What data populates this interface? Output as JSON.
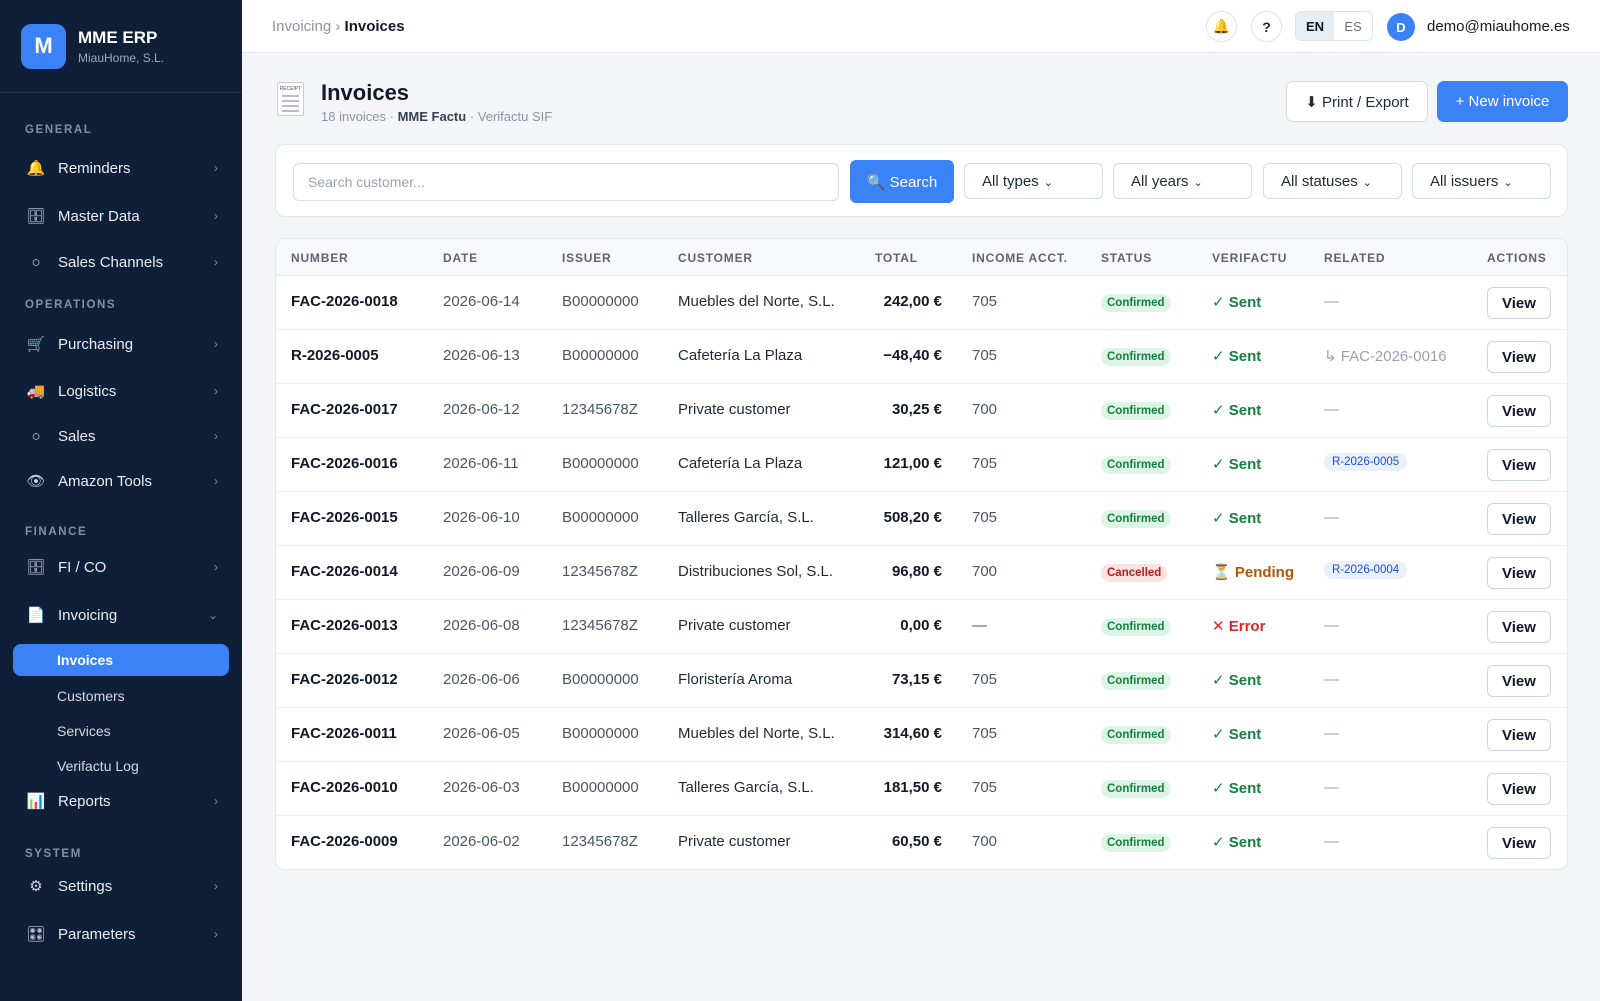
{
  "brand": {
    "logo_letter": "M",
    "name": "MME ERP",
    "company": "MiauHome, S.L."
  },
  "sidebar": {
    "sections": [
      {
        "label": "GENERAL"
      },
      {
        "label": "OPERATIONS"
      },
      {
        "label": "FINANCE"
      },
      {
        "label": "SYSTEM"
      }
    ],
    "items": [
      {
        "label": "Reminders",
        "icon": "🔔",
        "icon_name": "bell-icon"
      },
      {
        "label": "Master Data",
        "icon": "🗄",
        "icon_name": "cabinet-icon"
      },
      {
        "label": "Sales Channels",
        "icon": "○",
        "icon_name": "circle-icon"
      },
      {
        "label": "Purchasing",
        "icon": "🛒",
        "icon_name": "cart-icon"
      },
      {
        "label": "Logistics",
        "icon": "🚚",
        "icon_name": "truck-icon"
      },
      {
        "label": "Sales",
        "icon": "○",
        "icon_name": "circle-icon"
      },
      {
        "label": "Amazon Tools",
        "icon": "👁",
        "icon_name": "eye-icon"
      },
      {
        "label": "FI / CO",
        "icon": "🗄",
        "icon_name": "cabinet-icon"
      },
      {
        "label": "Invoicing",
        "icon": "📄",
        "icon_name": "document-icon"
      },
      {
        "label": "Reports",
        "icon": "📊",
        "icon_name": "chart-icon"
      },
      {
        "label": "Settings",
        "icon": "⚙",
        "icon_name": "gear-icon"
      },
      {
        "label": "Parameters",
        "icon": "🎛",
        "icon_name": "control-knobs-icon"
      }
    ],
    "chevron": "›",
    "open_chevron": "⌄",
    "subitems": [
      {
        "label": "Invoices",
        "active": true
      },
      {
        "label": "Customers",
        "active": false
      },
      {
        "label": "Services",
        "active": false
      },
      {
        "label": "Verifactu Log",
        "active": false
      }
    ]
  },
  "topbar": {
    "breadcrumb_parent": "Invoicing",
    "breadcrumb_sep": "›",
    "breadcrumb_current": "Invoices",
    "bell_icon": "🔔",
    "help_label": "?",
    "lang_en": "EN",
    "lang_es": "ES",
    "avatar_letter": "D",
    "user_email": "demo@miauhome.es"
  },
  "page": {
    "title": "Invoices",
    "count_text": "18 invoices · ",
    "software": "MME Factu",
    "sif_text": " · Verifactu SIF",
    "export_label": "⬇ Print / Export",
    "new_label": "+ New invoice",
    "receipt_icon_text": "RECEIPT"
  },
  "filters": {
    "search_placeholder": "Search customer...",
    "search_button": "🔍 Search",
    "types": "All types",
    "years": "All years",
    "statuses": "All statuses",
    "issuers": "All issuers",
    "caret": "⌄"
  },
  "table": {
    "columns": [
      "NUMBER",
      "DATE",
      "ISSUER",
      "CUSTOMER",
      "TOTAL",
      "INCOME ACCT.",
      "STATUS",
      "VERIFACTU",
      "RELATED",
      "ACTIONS"
    ],
    "rows": [
      {
        "number": "FAC-2026-0018",
        "date": "2026-06-14",
        "issuer": "B00000000",
        "customer": "Muebles del Norte, S.L.",
        "total": "242,00 €",
        "acct": "705",
        "status": "Confirmed",
        "verifactu": "✓ Sent",
        "related": "—",
        "action": "View"
      },
      {
        "number": "R-2026-0005",
        "date": "2026-06-13",
        "issuer": "B00000000",
        "customer": "Cafetería La Plaza",
        "total": "−48,40 €",
        "acct": "705",
        "status": "Confirmed",
        "verifactu": "✓ Sent",
        "related": "↳ FAC-2026-0016",
        "action": "View"
      },
      {
        "number": "FAC-2026-0017",
        "date": "2026-06-12",
        "issuer": "12345678Z",
        "customer": "Private customer",
        "total": "30,25 €",
        "acct": "700",
        "status": "Confirmed",
        "verifactu": "✓ Sent",
        "related": "—",
        "action": "View"
      },
      {
        "number": "FAC-2026-0016",
        "date": "2026-06-11",
        "issuer": "B00000000",
        "customer": "Cafetería La Plaza",
        "total": "121,00 €",
        "acct": "705",
        "status": "Confirmed",
        "verifactu": "✓ Sent",
        "related": "R-2026-0005",
        "action": "View"
      },
      {
        "number": "FAC-2026-0015",
        "date": "2026-06-10",
        "issuer": "B00000000",
        "customer": "Talleres García, S.L.",
        "total": "508,20 €",
        "acct": "705",
        "status": "Confirmed",
        "verifactu": "✓ Sent",
        "related": "—",
        "action": "View"
      },
      {
        "number": "FAC-2026-0014",
        "date": "2026-06-09",
        "issuer": "12345678Z",
        "customer": "Distribuciones Sol, S.L.",
        "total": "96,80 €",
        "acct": "700",
        "status": "Cancelled",
        "verifactu": "⏳ Pending",
        "related": "R-2026-0004",
        "action": "View"
      },
      {
        "number": "FAC-2026-0013",
        "date": "2026-06-08",
        "issuer": "12345678Z",
        "customer": "Private customer",
        "total": "0,00 €",
        "acct": "—",
        "status": "Confirmed",
        "verifactu": "✕ Error",
        "related": "—",
        "action": "View"
      },
      {
        "number": "FAC-2026-0012",
        "date": "2026-06-06",
        "issuer": "B00000000",
        "customer": "Floristería Aroma",
        "total": "73,15 €",
        "acct": "705",
        "status": "Confirmed",
        "verifactu": "✓ Sent",
        "related": "—",
        "action": "View"
      },
      {
        "number": "FAC-2026-0011",
        "date": "2026-06-05",
        "issuer": "B00000000",
        "customer": "Muebles del Norte, S.L.",
        "total": "314,60 €",
        "acct": "705",
        "status": "Confirmed",
        "verifactu": "✓ Sent",
        "related": "—",
        "action": "View"
      },
      {
        "number": "FAC-2026-0010",
        "date": "2026-06-03",
        "issuer": "B00000000",
        "customer": "Talleres García, S.L.",
        "total": "181,50 €",
        "acct": "705",
        "status": "Confirmed",
        "verifactu": "✓ Sent",
        "related": "—",
        "action": "View"
      },
      {
        "number": "FAC-2026-0009",
        "date": "2026-06-02",
        "issuer": "12345678Z",
        "customer": "Private customer",
        "total": "60,50 €",
        "acct": "700",
        "status": "Confirmed",
        "verifactu": "✓ Sent",
        "related": "—",
        "action": "View"
      }
    ]
  },
  "colors": {
    "sidebar_bg": "#0f1f38",
    "accent": "#3b82f6",
    "confirmed": "#15803d",
    "cancelled": "#b91c1c",
    "pending": "#b45309",
    "error": "#dc2626"
  }
}
